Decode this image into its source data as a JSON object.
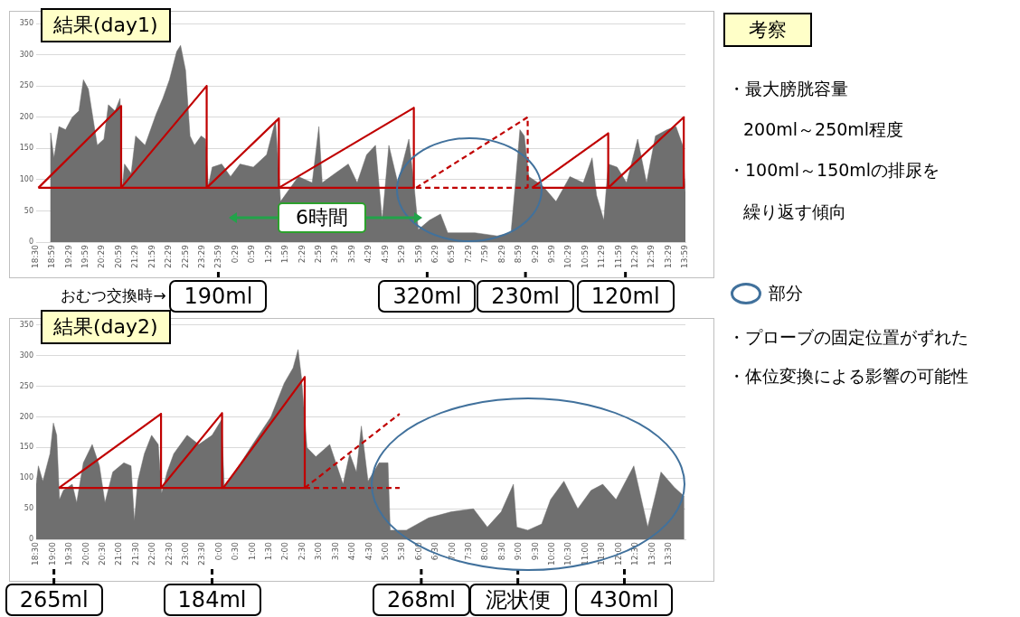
{
  "chart_data": [
    {
      "type": "area",
      "title": "結果(day1)",
      "xlim": [
        "--01-01T18:30",
        "--01-02T13:59"
      ],
      "ylim": [
        0,
        350
      ],
      "yticks": [
        0,
        50,
        100,
        150,
        200,
        250,
        300,
        350
      ],
      "grid": "y",
      "legend": false,
      "xticks": [
        {
          "value": "--01-01T18:30",
          "label": "18:30"
        },
        {
          "value": "--01-01T18:59",
          "label": "18:59"
        },
        {
          "value": "--01-01T19:29",
          "label": "19:29"
        },
        {
          "value": "--01-01T19:59",
          "label": "19:59"
        },
        {
          "value": "--01-01T20:29",
          "label": "20:29"
        },
        {
          "value": "--01-01T20:59",
          "label": "20:59"
        },
        {
          "value": "--01-01T21:29",
          "label": "21:29"
        },
        {
          "value": "--01-01T21:59",
          "label": "21:59"
        },
        {
          "value": "--01-01T22:29",
          "label": "22:29"
        },
        {
          "value": "--01-01T22:59",
          "label": "22:59"
        },
        {
          "value": "--01-01T23:29",
          "label": "23:29"
        },
        {
          "value": "--01-01T23:59",
          "label": "23:59"
        },
        {
          "value": "--01-02T00:29",
          "label": "0:29"
        },
        {
          "value": "--01-02T00:59",
          "label": "0:59"
        },
        {
          "value": "--01-02T01:29",
          "label": "1:29"
        },
        {
          "value": "--01-02T01:59",
          "label": "1:59"
        },
        {
          "value": "--01-02T02:29",
          "label": "2:29"
        },
        {
          "value": "--01-02T02:59",
          "label": "2:59"
        },
        {
          "value": "--01-02T03:29",
          "label": "3:29"
        },
        {
          "value": "--01-02T03:59",
          "label": "3:59"
        },
        {
          "value": "--01-02T04:29",
          "label": "4:29"
        },
        {
          "value": "--01-02T04:59",
          "label": "4:59"
        },
        {
          "value": "--01-02T05:29",
          "label": "5:29"
        },
        {
          "value": "--01-02T05:59",
          "label": "5:59"
        },
        {
          "value": "--01-02T06:29",
          "label": "6:29"
        },
        {
          "value": "--01-02T06:59",
          "label": "6:59"
        },
        {
          "value": "--01-02T07:29",
          "label": "7:29"
        },
        {
          "value": "--01-02T07:59",
          "label": "7:59"
        },
        {
          "value": "--01-02T08:29",
          "label": "8:29"
        },
        {
          "value": "--01-02T08:59",
          "label": "8:59"
        },
        {
          "value": "--01-02T09:29",
          "label": "9:29"
        },
        {
          "value": "--01-02T09:59",
          "label": "9:59"
        },
        {
          "value": "--01-02T10:29",
          "label": "10:29"
        },
        {
          "value": "--01-02T10:59",
          "label": "10:59"
        },
        {
          "value": "--01-02T11:29",
          "label": "11:29"
        },
        {
          "value": "--01-02T11:59",
          "label": "11:59"
        },
        {
          "value": "--01-02T12:29",
          "label": "12:29"
        },
        {
          "value": "--01-02T12:59",
          "label": "12:59"
        },
        {
          "value": "--01-02T13:29",
          "label": "13:29"
        },
        {
          "value": "--01-02T13:59",
          "label": "13:59"
        }
      ],
      "series": [
        {
          "type": "area",
          "color": "#6f6f6f",
          "x": [
            "--01-01T18:55",
            "--01-01T18:56",
            "--01-01T19:02",
            "--01-01T19:11",
            "--01-01T19:23",
            "--01-01T19:35",
            "--01-01T19:47",
            "--01-01T19:55",
            "--01-01T20:04",
            "--01-01T20:12",
            "--01-01T20:20",
            "--01-01T20:32",
            "--01-01T20:40",
            "--01-01T20:52",
            "--01-01T21:01",
            "--01-01T21:05",
            "--01-01T21:09",
            "--01-01T21:21",
            "--01-01T21:29",
            "--01-01T21:46",
            "--01-01T22:06",
            "--01-01T22:18",
            "--01-01T22:30",
            "--01-01T22:43",
            "--01-01T22:50",
            "--01-01T22:59",
            "--01-01T23:07",
            "--01-01T23:15",
            "--01-01T23:27",
            "--01-01T23:35",
            "--01-01T23:40",
            "--01-01T23:47",
            "--01-02T00:04",
            "--01-02T00:20",
            "--01-02T00:37",
            "--01-02T01:01",
            "--01-02T01:25",
            "--01-02T01:41",
            "--01-02T01:50",
            "--01-02T02:02",
            "--01-02T02:22",
            "--01-02T02:47",
            "--01-02T02:59",
            "--01-02T03:05",
            "--01-02T03:28",
            "--01-02T03:52",
            "--01-02T04:08",
            "--01-02T04:25",
            "--01-02T04:41",
            "--01-02T04:53",
            "--01-02T05:05",
            "--01-02T05:21",
            "--01-02T05:41",
            "--01-02T05:50",
            "--01-02T05:58",
            "--01-02T06:18",
            "--01-02T06:38",
            "--01-02T06:51",
            "--01-02T07:40",
            "--01-02T08:20",
            "--01-02T08:45",
            "--01-02T08:53",
            "--01-02T09:01",
            "--01-02T09:09",
            "--01-02T09:17",
            "--01-02T09:42",
            "--01-02T10:06",
            "--01-02T10:31",
            "--01-02T10:55",
            "--01-02T11:11",
            "--01-02T11:19",
            "--01-02T11:32",
            "--01-02T11:40",
            "--01-02T11:56",
            "--01-02T12:13",
            "--01-02T12:33",
            "--01-02T12:49",
            "--01-02T13:05",
            "--01-02T13:26",
            "--01-02T13:42",
            "--01-02T13:54",
            "--01-02T13:59"
          ],
          "values": [
            0,
            175,
            135,
            185,
            180,
            200,
            210,
            260,
            245,
            200,
            155,
            165,
            220,
            210,
            230,
            85,
            125,
            110,
            170,
            155,
            205,
            230,
            260,
            305,
            315,
            275,
            170,
            155,
            170,
            165,
            90,
            120,
            125,
            105,
            125,
            120,
            140,
            195,
            65,
            80,
            105,
            95,
            185,
            95,
            110,
            125,
            95,
            140,
            155,
            35,
            155,
            95,
            165,
            95,
            20,
            35,
            45,
            15,
            15,
            10,
            15,
            95,
            180,
            170,
            105,
            90,
            65,
            105,
            95,
            135,
            75,
            35,
            125,
            120,
            95,
            165,
            95,
            170,
            180,
            185,
            155,
            80
          ]
        },
        {
          "type": "line",
          "color": "#c00000",
          "line_style": "solid",
          "x": [
            "--01-01T18:34",
            "--01-01T21:03",
            "--01-01T21:03",
            "--01-01T23:37",
            "--01-01T23:37",
            "--01-02T01:47",
            "--01-02T01:47",
            "--01-02T05:50",
            "--01-02T05:50"
          ],
          "values": [
            87,
            218,
            87,
            250,
            87,
            198,
            87,
            215,
            87
          ]
        },
        {
          "type": "line",
          "color": "#c00000",
          "line_style": "solid",
          "x": [
            "--01-01T18:34",
            "--01-02T05:50"
          ],
          "values": [
            87,
            87
          ]
        },
        {
          "type": "line",
          "color": "#c00000",
          "line_style": "dashed",
          "x": [
            "--01-02T05:54",
            "--01-02T09:15",
            "--01-02T09:15"
          ],
          "values": [
            87,
            200,
            87
          ]
        },
        {
          "type": "line",
          "color": "#c00000",
          "line_style": "dashed",
          "x": [
            "--01-02T05:54",
            "--01-02T09:15"
          ],
          "values": [
            87,
            87
          ]
        },
        {
          "type": "line",
          "color": "#c00000",
          "line_style": "solid",
          "x": [
            "--01-02T09:23",
            "--01-02T11:40",
            "--01-02T11:40",
            "--01-02T13:56",
            "--01-02T13:56"
          ],
          "values": [
            87,
            174,
            87,
            200,
            87
          ]
        },
        {
          "type": "line",
          "color": "#c00000",
          "line_style": "solid",
          "x": [
            "--01-02T09:23",
            "--01-02T13:56"
          ],
          "values": [
            87,
            87
          ]
        }
      ],
      "annotations": [
        {
          "text": "190ml",
          "x": "--01-01T23:58",
          "y": 0
        },
        {
          "text": "320ml",
          "x": "--01-02T06:14",
          "y": 0
        },
        {
          "text": "230ml",
          "x": "--01-02T09:11",
          "y": 0
        },
        {
          "text": "120ml",
          "x": "--01-02T12:11",
          "y": 0
        },
        "6時間",
        "おむつ交換時→"
      ]
    },
    {
      "type": "area",
      "title": "結果(day2)",
      "xlim": [
        "--01-01T18:30",
        "--01-02T14:00"
      ],
      "ylim": [
        0,
        350
      ],
      "yticks": [
        0,
        50,
        100,
        150,
        200,
        250,
        300,
        350
      ],
      "grid": "y",
      "legend": false,
      "xticks": [
        {
          "value": "--01-01T18:30",
          "label": "18:30"
        },
        {
          "value": "--01-01T19:00",
          "label": "19:00"
        },
        {
          "value": "--01-01T19:30",
          "label": "19:30"
        },
        {
          "value": "--01-01T20:00",
          "label": "20:00"
        },
        {
          "value": "--01-01T20:30",
          "label": "20:30"
        },
        {
          "value": "--01-01T21:00",
          "label": "21:00"
        },
        {
          "value": "--01-01T21:30",
          "label": "21:30"
        },
        {
          "value": "--01-01T22:00",
          "label": "22:00"
        },
        {
          "value": "--01-01T22:30",
          "label": "22:30"
        },
        {
          "value": "--01-01T23:00",
          "label": "23:00"
        },
        {
          "value": "--01-01T23:30",
          "label": "23:30"
        },
        {
          "value": "--01-02T00:00",
          "label": "0:00"
        },
        {
          "value": "--01-02T00:30",
          "label": "0:30"
        },
        {
          "value": "--01-02T01:00",
          "label": "1:00"
        },
        {
          "value": "--01-02T01:30",
          "label": "1:30"
        },
        {
          "value": "--01-02T02:00",
          "label": "2:00"
        },
        {
          "value": "--01-02T02:30",
          "label": "2:30"
        },
        {
          "value": "--01-02T03:00",
          "label": "3:00"
        },
        {
          "value": "--01-02T03:30",
          "label": "3:30"
        },
        {
          "value": "--01-02T04:00",
          "label": "4:00"
        },
        {
          "value": "--01-02T04:30",
          "label": "4:30"
        },
        {
          "value": "--01-02T05:00",
          "label": "5:00"
        },
        {
          "value": "--01-02T05:30",
          "label": "5:30"
        },
        {
          "value": "--01-02T06:00",
          "label": "6:00"
        },
        {
          "value": "--01-02T06:30",
          "label": "6:30"
        },
        {
          "value": "--01-02T07:00",
          "label": "7:00"
        },
        {
          "value": "--01-02T07:30",
          "label": "7:30"
        },
        {
          "value": "--01-02T08:00",
          "label": "8:00"
        },
        {
          "value": "--01-02T08:30",
          "label": "8:30"
        },
        {
          "value": "--01-02T09:00",
          "label": "9:00"
        },
        {
          "value": "--01-02T09:30",
          "label": "9:30"
        },
        {
          "value": "--01-02T10:00",
          "label": "10:00"
        },
        {
          "value": "--01-02T10:30",
          "label": "10:30"
        },
        {
          "value": "--01-02T11:00",
          "label": "11:00"
        },
        {
          "value": "--01-02T11:30",
          "label": "11:30"
        },
        {
          "value": "--01-02T12:00",
          "label": "12:00"
        },
        {
          "value": "--01-02T12:30",
          "label": "12:30"
        },
        {
          "value": "--01-02T13:00",
          "label": "13:00"
        },
        {
          "value": "--01-02T13:30",
          "label": "13:30"
        }
      ],
      "series": [
        {
          "type": "area",
          "color": "#6f6f6f",
          "x": [
            "--01-01T18:30",
            "--01-01T18:34",
            "--01-01T18:42",
            "--01-01T18:55",
            "--01-01T19:01",
            "--01-01T19:07",
            "--01-01T19:12",
            "--01-01T19:19",
            "--01-01T19:35",
            "--01-01T19:43",
            "--01-01T19:55",
            "--01-01T20:11",
            "--01-01T20:24",
            "--01-01T20:34",
            "--01-01T20:48",
            "--01-01T21:08",
            "--01-01T21:21",
            "--01-01T21:27",
            "--01-01T21:33",
            "--01-01T21:45",
            "--01-01T21:58",
            "--01-01T22:10",
            "--01-01T22:16",
            "--01-01T22:26",
            "--01-01T22:38",
            "--01-01T23:02",
            "--01-01T23:23",
            "--01-01T23:47",
            "--01-02T00:04",
            "--01-02T00:09",
            "--01-02T00:28",
            "--01-02T01:00",
            "--01-02T01:33",
            "--01-02T01:57",
            "--01-02T02:13",
            "--01-02T02:22",
            "--01-02T02:28",
            "--01-02T02:38",
            "--01-02T02:54",
            "--01-02T03:19",
            "--01-02T03:43",
            "--01-02T03:55",
            "--01-02T04:07",
            "--01-02T04:16",
            "--01-02T04:28",
            "--01-02T04:48",
            "--01-02T05:04",
            "--01-02T05:08",
            "--01-02T05:37",
            "--01-02T06:17",
            "--01-02T06:58",
            "--01-02T07:38",
            "--01-02T08:03",
            "--01-02T08:28",
            "--01-02T08:50",
            "--01-02T08:56",
            "--01-02T09:16",
            "--01-02T09:41",
            "--01-02T09:57",
            "--01-02T10:21",
            "--01-02T10:46",
            "--01-02T11:10",
            "--01-02T11:31",
            "--01-02T11:55",
            "--01-02T12:27",
            "--01-02T12:52",
            "--01-02T13:16",
            "--01-02T13:40",
            "--01-02T13:58"
          ],
          "values": [
            90,
            120,
            95,
            140,
            190,
            170,
            65,
            80,
            90,
            60,
            125,
            155,
            120,
            60,
            110,
            125,
            120,
            30,
            95,
            140,
            170,
            155,
            75,
            110,
            140,
            170,
            155,
            170,
            195,
            85,
            110,
            155,
            200,
            255,
            280,
            310,
            265,
            150,
            135,
            155,
            90,
            140,
            110,
            185,
            95,
            125,
            125,
            15,
            15,
            35,
            45,
            50,
            20,
            45,
            90,
            20,
            15,
            25,
            65,
            95,
            50,
            80,
            90,
            65,
            120,
            20,
            110,
            85,
            70
          ]
        },
        {
          "type": "line",
          "color": "#c00000",
          "line_style": "solid",
          "x": [
            "--01-01T19:11",
            "--01-01T22:15",
            "--01-01T22:15"
          ],
          "values": [
            84,
            205,
            84
          ]
        },
        {
          "type": "line",
          "color": "#c00000",
          "line_style": "solid",
          "x": [
            "--01-01T22:15",
            "--01-02T00:05",
            "--01-02T00:05"
          ],
          "values": [
            84,
            206,
            84
          ]
        },
        {
          "type": "line",
          "color": "#c00000",
          "line_style": "solid",
          "x": [
            "--01-02T00:07",
            "--01-02T02:34",
            "--01-02T02:34"
          ],
          "values": [
            84,
            265,
            84
          ]
        },
        {
          "type": "line",
          "color": "#c00000",
          "line_style": "solid",
          "x": [
            "--01-01T19:11",
            "--01-02T02:34"
          ],
          "values": [
            84,
            84
          ]
        },
        {
          "type": "line",
          "color": "#c00000",
          "line_style": "dashed",
          "x": [
            "--01-02T02:34",
            "--01-02T05:25"
          ],
          "values": [
            84,
            205
          ]
        },
        {
          "type": "line",
          "color": "#c00000",
          "line_style": "dashed",
          "x": [
            "--01-02T02:34",
            "--01-02T05:25"
          ],
          "values": [
            84,
            84
          ]
        }
      ],
      "annotations": [
        {
          "text": "265ml",
          "x": "--01-01T19:02",
          "y": 0
        },
        {
          "text": "184ml",
          "x": "--01-01T23:47",
          "y": 0
        },
        {
          "text": "268ml",
          "x": "--01-02T06:04",
          "y": 0
        },
        {
          "text": "泥状便",
          "x": "--01-02T08:58",
          "y": 0
        },
        {
          "text": "430ml",
          "x": "--01-02T12:10",
          "y": 0
        }
      ]
    },
    {
      "type": "other",
      "title": "考察",
      "annotations": [
        "・最大膀胱容量",
        "200ml～250ml程度",
        "・100ml～150mlの排尿を",
        "繰り返す傾向",
        "部分",
        "・プローブの固定位置がずれた",
        "・体位変換による影響の可能性"
      ]
    }
  ]
}
